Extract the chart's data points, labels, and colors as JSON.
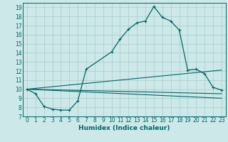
{
  "xlabel": "Humidex (Indice chaleur)",
  "bg_color": "#cce8e8",
  "grid_color": "#aacccc",
  "line_color": "#006666",
  "xlim": [
    -0.5,
    23.5
  ],
  "ylim": [
    7,
    19.5
  ],
  "yticks": [
    7,
    8,
    9,
    10,
    11,
    12,
    13,
    14,
    15,
    16,
    17,
    18,
    19
  ],
  "xticks": [
    0,
    1,
    2,
    3,
    4,
    5,
    6,
    7,
    8,
    9,
    10,
    11,
    12,
    13,
    14,
    15,
    16,
    17,
    18,
    19,
    20,
    21,
    22,
    23
  ],
  "line1_x": [
    0,
    1,
    2,
    3,
    4,
    5,
    6,
    7,
    10,
    11,
    12,
    13,
    14,
    15,
    16,
    17,
    18,
    19,
    20,
    21,
    22,
    23
  ],
  "line1_y": [
    10,
    9.5,
    8.1,
    7.8,
    7.7,
    7.7,
    8.7,
    12.2,
    14.1,
    15.5,
    16.6,
    17.3,
    17.5,
    19.1,
    17.9,
    17.5,
    16.5,
    12.1,
    12.2,
    11.7,
    10.2,
    9.9
  ],
  "line2_x": [
    0,
    23
  ],
  "line2_y": [
    10,
    9.5
  ],
  "line3_x": [
    0,
    23
  ],
  "line3_y": [
    10,
    12.1
  ],
  "line4_x": [
    0,
    23
  ],
  "line4_y": [
    10,
    9.0
  ]
}
